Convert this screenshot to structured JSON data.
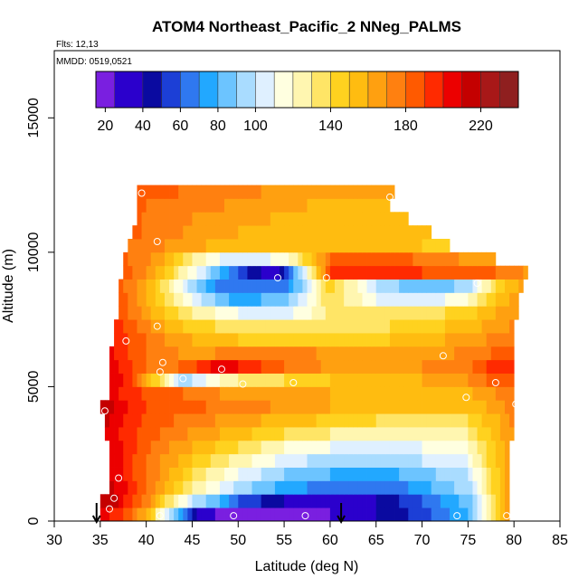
{
  "chart_data": {
    "type": "heatmap",
    "title": "ATOM4 Northeast_Pacific_2 NNeg_PALMS",
    "flights_label": "Flts: 12,13",
    "mmdd_label": "MMDD: 0519,0521",
    "xlabel": "Latitude (deg N)",
    "ylabel": "Altitude (m)",
    "xlim": [
      30,
      85
    ],
    "ylim": [
      0,
      17500
    ],
    "x_ticks": [
      30,
      35,
      40,
      45,
      50,
      55,
      60,
      65,
      70,
      75,
      80,
      85
    ],
    "y_ticks": [
      0,
      5000,
      10000,
      15000
    ],
    "colorbar": {
      "ticks": [
        20,
        40,
        60,
        80,
        100,
        140,
        180,
        220
      ],
      "bins": [
        15,
        25,
        40,
        50,
        60,
        70,
        80,
        90,
        100,
        110,
        120,
        130,
        140,
        150,
        160,
        170,
        180,
        190,
        200,
        210,
        220,
        230,
        240
      ],
      "colors": [
        "#7a1fe0",
        "#2b00cc",
        "#0a0aa0",
        "#1c3fd6",
        "#2f78f0",
        "#22a8ff",
        "#6cc4ff",
        "#a9dcff",
        "#dff0ff",
        "#ffffe0",
        "#fff6b0",
        "#ffe566",
        "#ffd21f",
        "#ffbc10",
        "#ffa010",
        "#ff8010",
        "#ff5a00",
        "#ff2a00",
        "#ec0000",
        "#c40000",
        "#a81818",
        "#8f1f1f"
      ]
    },
    "row_levels_m": [
      250,
      750,
      1250,
      1750,
      2250,
      2750,
      3250,
      3750,
      4250,
      4750,
      5250,
      5750,
      6250,
      6750,
      7250,
      7750,
      8250,
      8750,
      9250,
      9750,
      10250,
      10750,
      11250,
      11750,
      12250
    ],
    "rows": [
      {
        "z": 250,
        "lat": [
          35,
          36,
          38,
          40,
          42,
          45,
          48,
          50,
          52,
          55,
          57,
          60,
          62,
          65,
          70,
          75,
          78,
          79.5
        ],
        "v": [
          205,
          200,
          185,
          160,
          110,
          45,
          20,
          15,
          15,
          15,
          20,
          25,
          30,
          40,
          55,
          80,
          140,
          170
        ]
      },
      {
        "z": 750,
        "lat": [
          35,
          36,
          38,
          40,
          42,
          45,
          48,
          50,
          55,
          60,
          65,
          70,
          75,
          78,
          79.5
        ],
        "v": [
          215,
          220,
          195,
          175,
          140,
          100,
          80,
          60,
          40,
          35,
          40,
          60,
          85,
          140,
          165
        ]
      },
      {
        "z": 1250,
        "lat": [
          36,
          38,
          40,
          42,
          45,
          50,
          55,
          60,
          65,
          70,
          75,
          78,
          79.5
        ],
        "v": [
          215,
          200,
          180,
          160,
          130,
          95,
          75,
          65,
          60,
          75,
          95,
          145,
          165
        ]
      },
      {
        "z": 1750,
        "lat": [
          36,
          38,
          40,
          42,
          45,
          50,
          55,
          60,
          65,
          70,
          75,
          78,
          79.5
        ],
        "v": [
          210,
          195,
          180,
          165,
          140,
          110,
          90,
          80,
          75,
          85,
          100,
          145,
          165
        ]
      },
      {
        "z": 2250,
        "lat": [
          36,
          38,
          40,
          42,
          45,
          50,
          55,
          60,
          65,
          70,
          75,
          78,
          79.5
        ],
        "v": [
          210,
          195,
          180,
          168,
          150,
          125,
          105,
          95,
          90,
          100,
          110,
          150,
          168
        ]
      },
      {
        "z": 2750,
        "lat": [
          36,
          38,
          40,
          42,
          45,
          50,
          55,
          60,
          65,
          70,
          75,
          78,
          79.5
        ],
        "v": [
          212,
          195,
          182,
          172,
          160,
          140,
          120,
          110,
          105,
          110,
          120,
          150,
          168
        ]
      },
      {
        "z": 3250,
        "lat": [
          35.5,
          38,
          40,
          42,
          45,
          50,
          55,
          60,
          65,
          70,
          75,
          78,
          80
        ],
        "v": [
          210,
          195,
          185,
          178,
          168,
          155,
          140,
          130,
          125,
          125,
          130,
          155,
          170
        ]
      },
      {
        "z": 3750,
        "lat": [
          35.5,
          38,
          40,
          42,
          45,
          50,
          55,
          60,
          65,
          70,
          75,
          78,
          80
        ],
        "v": [
          215,
          198,
          188,
          182,
          175,
          165,
          155,
          148,
          140,
          138,
          140,
          158,
          172
        ]
      },
      {
        "z": 4250,
        "lat": [
          35,
          36,
          38,
          40,
          45,
          50,
          55,
          60,
          65,
          70,
          75,
          78,
          80
        ],
        "v": [
          220,
          215,
          200,
          190,
          182,
          175,
          168,
          160,
          155,
          150,
          152,
          165,
          175
        ]
      },
      {
        "z": 4750,
        "lat": [
          36,
          38,
          40,
          45,
          50,
          55,
          60,
          65,
          70,
          75,
          78,
          80
        ],
        "v": [
          205,
          195,
          188,
          178,
          165,
          160,
          160,
          158,
          155,
          158,
          170,
          178
        ]
      },
      {
        "z": 5250,
        "lat": [
          36,
          38,
          40,
          42,
          44,
          45,
          48,
          50,
          55,
          60,
          65,
          70,
          75,
          78,
          80
        ],
        "v": [
          210,
          195,
          160,
          130,
          90,
          100,
          120,
          130,
          140,
          150,
          155,
          160,
          170,
          185,
          190
        ]
      },
      {
        "z": 5750,
        "lat": [
          36,
          38,
          40,
          42,
          45,
          48,
          50,
          55,
          60,
          65,
          70,
          75,
          78,
          80
        ],
        "v": [
          205,
          195,
          180,
          175,
          185,
          205,
          200,
          180,
          168,
          165,
          170,
          178,
          195,
          200
        ]
      },
      {
        "z": 6250,
        "lat": [
          36,
          38,
          40,
          42,
          45,
          50,
          55,
          60,
          65,
          70,
          75,
          78,
          80
        ],
        "v": [
          205,
          190,
          180,
          172,
          168,
          172,
          175,
          168,
          162,
          165,
          172,
          182,
          188
        ]
      },
      {
        "z": 6750,
        "lat": [
          36.5,
          38,
          40,
          42,
          45,
          50,
          55,
          60,
          65,
          70,
          75,
          78,
          80
        ],
        "v": [
          200,
          190,
          180,
          170,
          160,
          150,
          145,
          145,
          148,
          155,
          165,
          172,
          175
        ]
      },
      {
        "z": 7250,
        "lat": [
          36.5,
          38,
          40,
          42,
          45,
          50,
          55,
          60,
          65,
          70,
          75,
          78,
          80
        ],
        "v": [
          195,
          185,
          175,
          160,
          145,
          135,
          130,
          132,
          138,
          145,
          155,
          165,
          172
        ]
      },
      {
        "z": 7750,
        "lat": [
          37,
          38,
          40,
          42,
          45,
          50,
          55,
          58,
          60,
          65,
          70,
          75,
          78,
          80.5
        ],
        "v": [
          190,
          180,
          165,
          150,
          130,
          110,
          105,
          120,
          135,
          130,
          135,
          145,
          160,
          170
        ]
      },
      {
        "z": 8250,
        "lat": [
          37,
          38,
          40,
          42,
          45,
          48,
          50,
          55,
          58,
          60,
          65,
          70,
          75,
          78,
          80.5
        ],
        "v": [
          188,
          178,
          160,
          140,
          110,
          85,
          75,
          85,
          115,
          140,
          110,
          100,
          120,
          150,
          168
        ]
      },
      {
        "z": 8750,
        "lat": [
          37,
          38,
          40,
          42,
          45,
          48,
          50,
          55,
          58,
          60,
          65,
          70,
          75,
          78,
          81
        ],
        "v": [
          185,
          178,
          160,
          135,
          95,
          65,
          60,
          60,
          110,
          145,
          100,
          80,
          95,
          140,
          165
        ]
      },
      {
        "z": 9250,
        "lat": [
          37.5,
          40,
          42,
          45,
          48,
          50,
          54,
          57,
          59,
          60,
          62,
          65,
          70,
          75,
          78,
          81.5
        ],
        "v": [
          185,
          170,
          150,
          115,
          80,
          60,
          25,
          100,
          160,
          190,
          200,
          195,
          190,
          185,
          180,
          168
        ]
      },
      {
        "z": 9750,
        "lat": [
          37.5,
          40,
          42,
          45,
          48,
          50,
          55,
          58,
          60,
          62,
          65,
          70,
          75,
          78
        ],
        "v": [
          182,
          175,
          160,
          130,
          110,
          100,
          115,
          150,
          180,
          190,
          188,
          178,
          168,
          160
        ]
      },
      {
        "z": 10250,
        "lat": [
          38,
          40,
          42,
          45,
          50,
          55,
          60,
          65,
          70,
          73
        ],
        "v": [
          180,
          175,
          170,
          162,
          155,
          150,
          150,
          152,
          150,
          148
        ]
      },
      {
        "z": 10750,
        "lat": [
          38.5,
          40,
          45,
          50,
          55,
          60,
          65,
          70,
          71
        ],
        "v": [
          182,
          178,
          168,
          160,
          155,
          152,
          150,
          150,
          150
        ]
      },
      {
        "z": 11250,
        "lat": [
          39,
          40,
          45,
          50,
          55,
          60,
          65,
          68.5
        ],
        "v": [
          182,
          178,
          170,
          165,
          158,
          152,
          150,
          150
        ]
      },
      {
        "z": 11750,
        "lat": [
          39,
          40,
          45,
          50,
          55,
          60,
          65,
          66.5
        ],
        "v": [
          185,
          180,
          175,
          168,
          162,
          158,
          155,
          155
        ]
      },
      {
        "z": 12250,
        "lat": [
          39,
          40,
          45,
          50,
          55,
          60,
          65,
          67
        ],
        "v": [
          188,
          185,
          178,
          172,
          168,
          165,
          162,
          160
        ]
      }
    ],
    "sample_points": [
      {
        "lat": 41.5,
        "alt": 200
      },
      {
        "lat": 49.5,
        "alt": 200
      },
      {
        "lat": 57.3,
        "alt": 200
      },
      {
        "lat": 73.8,
        "alt": 200
      },
      {
        "lat": 79.2,
        "alt": 200
      },
      {
        "lat": 36.0,
        "alt": 450
      },
      {
        "lat": 36.5,
        "alt": 850
      },
      {
        "lat": 37.0,
        "alt": 1600
      },
      {
        "lat": 35.5,
        "alt": 4100
      },
      {
        "lat": 44.0,
        "alt": 5300
      },
      {
        "lat": 50.5,
        "alt": 5100
      },
      {
        "lat": 56.0,
        "alt": 5150
      },
      {
        "lat": 74.8,
        "alt": 4600
      },
      {
        "lat": 78.0,
        "alt": 5150
      },
      {
        "lat": 80.2,
        "alt": 4350
      },
      {
        "lat": 41.5,
        "alt": 5550
      },
      {
        "lat": 41.8,
        "alt": 5900
      },
      {
        "lat": 48.2,
        "alt": 5650
      },
      {
        "lat": 72.3,
        "alt": 6150
      },
      {
        "lat": 37.8,
        "alt": 6700
      },
      {
        "lat": 41.2,
        "alt": 7250
      },
      {
        "lat": 54.3,
        "alt": 9050
      },
      {
        "lat": 59.6,
        "alt": 9050
      },
      {
        "lat": 76.0,
        "alt": 8850
      },
      {
        "lat": 41.2,
        "alt": 10400
      },
      {
        "lat": 39.5,
        "alt": 12200
      },
      {
        "lat": 66.5,
        "alt": 12050
      }
    ],
    "flight_markers_lat": [
      34.6,
      61.2
    ]
  }
}
